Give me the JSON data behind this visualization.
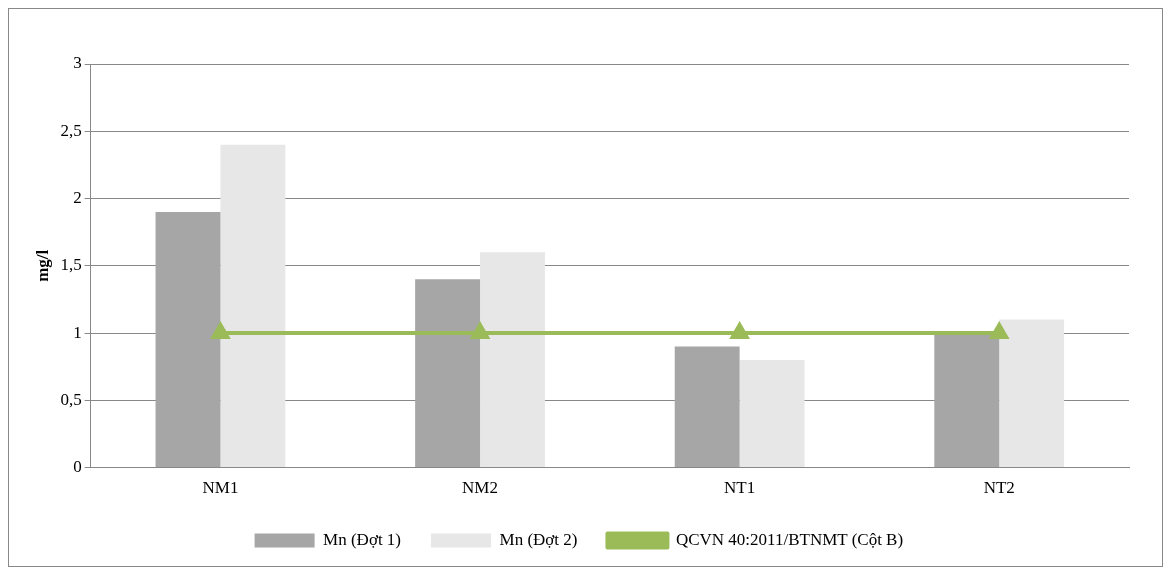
{
  "chart_data": {
    "type": "bar",
    "ylabel": "mg/l",
    "categories": [
      "NM1",
      "NM2",
      "NT1",
      "NT2"
    ],
    "series": [
      {
        "name": "Mn (Đợt 1)",
        "color": "#a6a6a6",
        "values": [
          1.9,
          1.4,
          0.9,
          1.0
        ]
      },
      {
        "name": "Mn (Đợt 2)",
        "color": "#e7e7e7",
        "values": [
          2.4,
          1.6,
          0.8,
          1.1
        ]
      },
      {
        "name": "QCVN 40:2011/BTNMT (Cột B)",
        "type": "line",
        "color": "#9bbb59",
        "marker": "triangle",
        "values": [
          1,
          1,
          1,
          1
        ]
      }
    ],
    "ylim": [
      0,
      3
    ],
    "yticks": [
      0,
      {
        "value": 0.5,
        "label": "0,5"
      },
      1,
      {
        "value": 1.5,
        "label": "1,5"
      },
      2,
      {
        "value": 2.5,
        "label": "2,5"
      },
      3
    ],
    "grid": "y",
    "legend": "bottom"
  }
}
